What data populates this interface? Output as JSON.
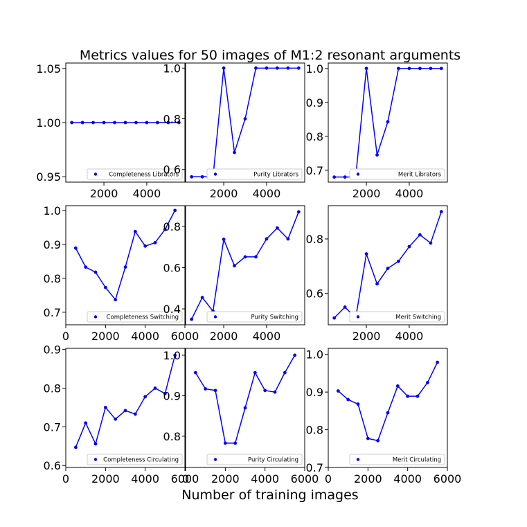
{
  "figure": {
    "title": "Metrics values for 50 images of M1:2 resonant arguments",
    "xlabel": "Number of training images"
  },
  "colors": {
    "series": "#0000ff",
    "axes": "#000000",
    "legend_border": "#cccccc"
  },
  "chart_data": [
    {
      "type": "line",
      "legend": "Completeness Librators",
      "legend_position": "lower-right",
      "x": [
        500,
        1000,
        1500,
        2000,
        2500,
        3000,
        3500,
        4000,
        4500,
        5000,
        5500
      ],
      "y": [
        1.0,
        1.0,
        1.0,
        1.0,
        1.0,
        1.0,
        1.0,
        1.0,
        1.0,
        1.0,
        1.0
      ],
      "xlim": [
        220,
        5780
      ],
      "ylim": [
        0.945,
        1.055
      ],
      "xticks": [
        2000,
        4000
      ],
      "xtick_labels": [
        "2000",
        "4000"
      ],
      "yticks": [
        0.95,
        1.0,
        1.05
      ],
      "ytick_labels": [
        "0.95",
        "1.00",
        "1.05"
      ]
    },
    {
      "type": "line",
      "legend": "Purity Librators",
      "legend_position": "lower-right",
      "x": [
        500,
        1000,
        1500,
        2000,
        2500,
        3000,
        3500,
        4000,
        4500,
        5000,
        5500
      ],
      "y": [
        0.571,
        0.571,
        0.571,
        1.0,
        0.667,
        0.8,
        1.0,
        1.0,
        1.0,
        1.0,
        1.0
      ],
      "xlim": [
        220,
        5780
      ],
      "ylim": [
        0.55,
        1.02
      ],
      "xticks": [
        2000,
        4000
      ],
      "xtick_labels": [
        "2000",
        "4000"
      ],
      "yticks": [
        0.6,
        0.8,
        1.0
      ],
      "ytick_labels": [
        "0.6",
        "0.8",
        "1.0"
      ]
    },
    {
      "type": "line",
      "legend": "Merit Librators",
      "legend_position": "lower-right",
      "x": [
        500,
        1000,
        1500,
        2000,
        2500,
        3000,
        3500,
        4000,
        4500,
        5000,
        5500
      ],
      "y": [
        0.68,
        0.68,
        0.68,
        1.0,
        0.745,
        0.843,
        1.0,
        1.0,
        1.0,
        1.0,
        1.0
      ],
      "xlim": [
        220,
        5780
      ],
      "ylim": [
        0.665,
        1.016
      ],
      "xticks": [
        2000,
        4000
      ],
      "xtick_labels": [
        "2000",
        "4000"
      ],
      "yticks": [
        0.7,
        0.8,
        0.9,
        1.0
      ],
      "ytick_labels": [
        "0.7",
        "0.8",
        "0.9",
        "1.0"
      ]
    },
    {
      "type": "line",
      "legend": "Completeness Switching",
      "legend_position": "lower-right",
      "x": [
        500,
        1000,
        1500,
        2000,
        2500,
        3000,
        3500,
        4000,
        4500,
        5000,
        5500
      ],
      "y": [
        0.889,
        0.833,
        0.818,
        0.773,
        0.737,
        0.833,
        0.938,
        0.895,
        0.905,
        0.944,
        1.0
      ],
      "xlim": [
        0,
        6000
      ],
      "ylim": [
        0.663,
        1.014
      ],
      "xticks": [
        0,
        2000,
        4000,
        6000
      ],
      "xtick_labels": [
        "0",
        "2000",
        "4000",
        "6000"
      ],
      "yticks": [
        0.7,
        0.8,
        0.9,
        1.0
      ],
      "ytick_labels": [
        "0.7",
        "0.8",
        "0.9",
        "1.0"
      ]
    },
    {
      "type": "line",
      "legend": "Purity Switching",
      "legend_position": "lower-right",
      "x": [
        500,
        1000,
        1500,
        2000,
        2500,
        3000,
        3500,
        4000,
        4500,
        5000,
        5500
      ],
      "y": [
        0.35,
        0.455,
        0.389,
        0.737,
        0.609,
        0.652,
        0.652,
        0.739,
        0.792,
        0.739,
        0.87
      ],
      "xlim": [
        220,
        5780
      ],
      "ylim": [
        0.323,
        0.9
      ],
      "xticks": [
        2000,
        4000
      ],
      "xtick_labels": [
        "2000",
        "4000"
      ],
      "yticks": [
        0.4,
        0.6,
        0.8
      ],
      "ytick_labels": [
        "0.4",
        "0.6",
        "0.8"
      ]
    },
    {
      "type": "line",
      "legend": "Merit Switching",
      "legend_position": "lower-right",
      "x": [
        500,
        1000,
        1500,
        2000,
        2500,
        3000,
        3500,
        4000,
        4500,
        5000,
        5500
      ],
      "y": [
        0.51,
        0.55,
        0.51,
        0.745,
        0.635,
        0.692,
        0.718,
        0.772,
        0.815,
        0.785,
        0.9
      ],
      "xlim": [
        220,
        5780
      ],
      "ylim": [
        0.485,
        0.922
      ],
      "xticks": [
        2000,
        4000
      ],
      "xtick_labels": [
        "2000",
        "4000"
      ],
      "yticks": [
        0.6,
        0.8
      ],
      "ytick_labels": [
        "0.6",
        "0.8"
      ]
    },
    {
      "type": "line",
      "legend": "Completeness Circulating",
      "legend_position": "lower-right",
      "x": [
        500,
        1000,
        1500,
        2000,
        2500,
        3000,
        3500,
        4000,
        4500,
        5000,
        5500
      ],
      "y": [
        0.647,
        0.71,
        0.656,
        0.75,
        0.72,
        0.742,
        0.733,
        0.778,
        0.8,
        0.786,
        0.885
      ],
      "xlim": [
        0,
        6000
      ],
      "ylim": [
        0.595,
        0.903
      ],
      "xticks": [
        0,
        2000,
        4000,
        6000
      ],
      "xtick_labels": [
        "0",
        "2000",
        "4000",
        "6000"
      ],
      "yticks": [
        0.6,
        0.7,
        0.8,
        0.9
      ],
      "ytick_labels": [
        "0.6",
        "0.7",
        "0.8",
        "0.9"
      ]
    },
    {
      "type": "line",
      "legend": "Purity Circulating",
      "legend_position": "lower-right",
      "x": [
        500,
        1000,
        1500,
        2000,
        2500,
        3000,
        3500,
        4000,
        4500,
        5000,
        5500
      ],
      "y": [
        0.957,
        0.917,
        0.913,
        0.783,
        0.783,
        0.87,
        0.957,
        0.913,
        0.909,
        0.957,
        1.0
      ],
      "xlim": [
        0,
        6000
      ],
      "ylim": [
        0.723,
        1.017
      ],
      "xticks": [
        0,
        2000,
        4000,
        6000
      ],
      "xtick_labels": [
        "0",
        "2000",
        "4000",
        "6000"
      ],
      "yticks": [
        0.8,
        0.9,
        1.0
      ],
      "ytick_labels": [
        "0.8",
        "0.9",
        "1.0"
      ]
    },
    {
      "type": "line",
      "legend": "Merit Circulating",
      "legend_position": "lower-right",
      "x": [
        500,
        1000,
        1500,
        2000,
        2500,
        3000,
        3500,
        4000,
        4500,
        5000,
        5500
      ],
      "y": [
        0.903,
        0.88,
        0.868,
        0.777,
        0.771,
        0.845,
        0.916,
        0.889,
        0.889,
        0.925,
        0.979
      ],
      "xlim": [
        0,
        6000
      ],
      "ylim": [
        0.7,
        1.016
      ],
      "xticks": [
        0,
        2000,
        4000,
        6000
      ],
      "xtick_labels": [
        "0",
        "2000",
        "4000",
        "6000"
      ],
      "yticks": [
        0.7,
        0.8,
        0.9,
        1.0
      ],
      "ytick_labels": [
        "0.7",
        "0.8",
        "0.9",
        "1.0"
      ]
    }
  ]
}
